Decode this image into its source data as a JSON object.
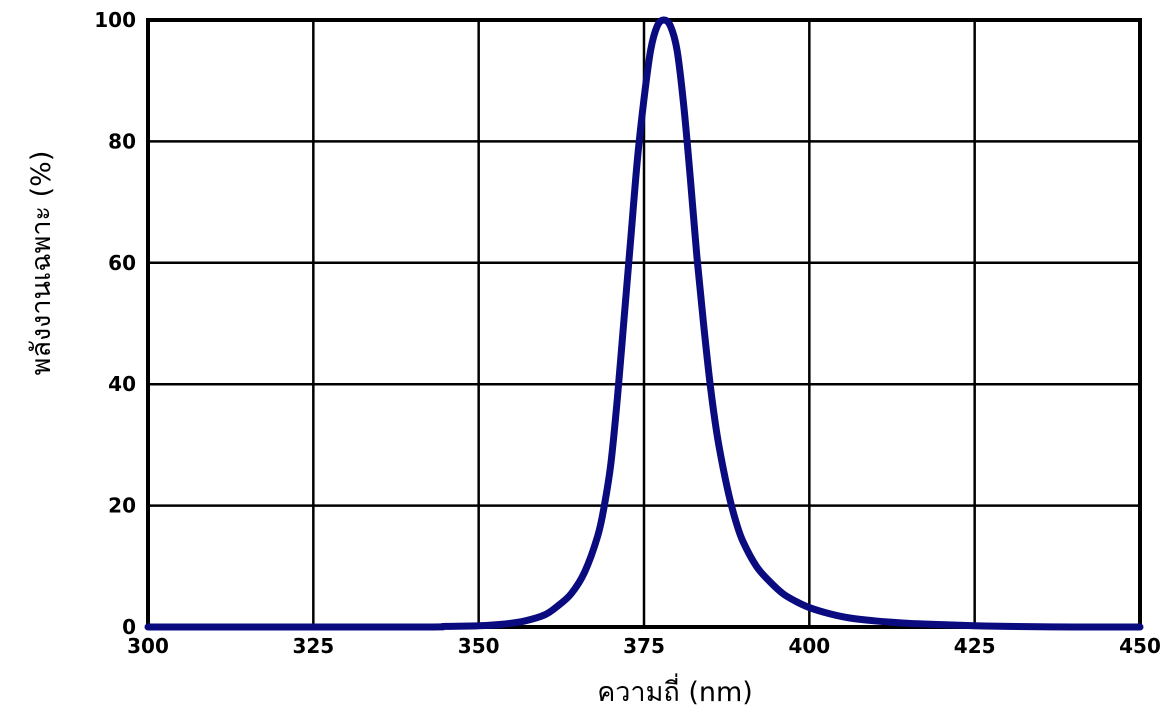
{
  "chart_data": {
    "type": "line",
    "title": "",
    "xlabel": "ความถี่ (nm)",
    "ylabel": "พลังงานเฉพาะ (%)",
    "xlim": [
      300,
      450
    ],
    "ylim": [
      0,
      100
    ],
    "x_ticks": [
      "300",
      "325",
      "350",
      "375",
      "400",
      "425",
      "450"
    ],
    "y_ticks": [
      "0",
      "20",
      "40",
      "60",
      "80",
      "100"
    ],
    "grid": true,
    "legend": "none",
    "series": [
      {
        "color": "#0b0b80",
        "x": [
          300,
          340,
          345,
          350,
          354,
          357,
          360,
          362,
          364,
          366,
          368,
          369,
          370,
          371,
          372,
          373,
          374,
          375,
          376,
          377,
          378,
          379,
          380,
          381,
          382,
          383,
          384,
          385,
          386,
          387,
          388,
          389,
          390,
          392,
          394,
          396,
          398,
          400,
          403,
          406,
          410,
          415,
          420,
          425,
          430,
          440,
          450
        ],
        "y": [
          0,
          0,
          0.1,
          0.2,
          0.5,
          1,
          2,
          3.5,
          5.5,
          9,
          15,
          20,
          27,
          38,
          51,
          64,
          77,
          87,
          95,
          99,
          100,
          99,
          95,
          86,
          74,
          61,
          50,
          40,
          32,
          26,
          21,
          17,
          14,
          10,
          7.5,
          5.5,
          4.2,
          3.2,
          2.2,
          1.5,
          1,
          0.6,
          0.4,
          0.2,
          0.1,
          0,
          0
        ]
      }
    ]
  }
}
